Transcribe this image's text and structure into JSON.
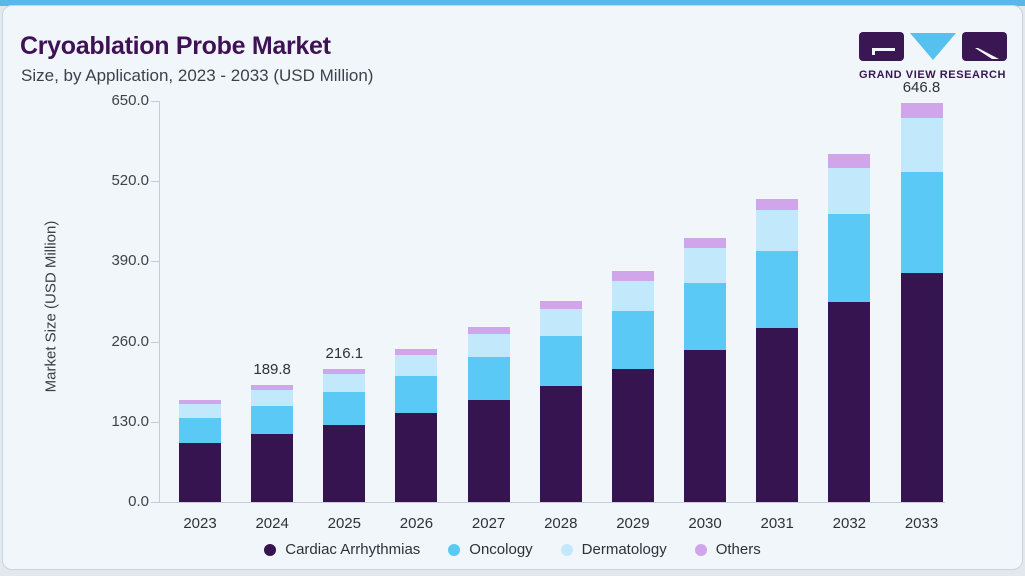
{
  "header": {
    "title": "Cryoablation Probe Market",
    "subtitle": "Size, by Application, 2023 - 2033 (USD Million)"
  },
  "logo": {
    "text": "GRAND VIEW RESEARCH",
    "purple": "#3a1652",
    "blue": "#56c0ee"
  },
  "colors": {
    "top_strip": "#58b9e9",
    "card_bg": "#f1f6fa",
    "axis": "#c5ced6",
    "title": "#3e1254"
  },
  "chart_data": {
    "type": "bar",
    "variant": "stacked",
    "title": "Cryoablation Probe Market",
    "subtitle": "Size, by Application, 2023 - 2033 (USD Million)",
    "xlabel": "",
    "ylabel": "Market Size (USD Million)",
    "ylim": [
      0,
      650
    ],
    "ytick_values": [
      650,
      520,
      390,
      260,
      130,
      0
    ],
    "ytick_labels": [
      "650.0",
      "520.0",
      "390.0",
      "260.0",
      "130.0",
      "0.0"
    ],
    "grid": false,
    "legend_position": "bottom",
    "categories": [
      "2023",
      "2024",
      "2025",
      "2026",
      "2027",
      "2028",
      "2029",
      "2030",
      "2031",
      "2032",
      "2033"
    ],
    "series": [
      {
        "name": "Cardiac Arrhythmias",
        "color": "#361450",
        "values": [
          96.3,
          110.3,
          125.6,
          143.8,
          164.6,
          188.4,
          215.6,
          246.9,
          282.7,
          323.7,
          370.8
        ]
      },
      {
        "name": "Oncology",
        "color": "#5bc9f5",
        "values": [
          39.8,
          45.9,
          52.4,
          60.6,
          70.0,
          80.9,
          93.4,
          107.8,
          124.2,
          143.1,
          164.9
        ]
      },
      {
        "name": "Dermatology",
        "color": "#c2e9fb",
        "values": [
          22.6,
          25.4,
          28.8,
          33.2,
          38.0,
          43.6,
          50.0,
          57.3,
          65.7,
          75.3,
          86.5
        ]
      },
      {
        "name": "Others",
        "color": "#d0a5e9",
        "values": [
          7.3,
          8.2,
          9.3,
          10.2,
          11.6,
          13.0,
          14.7,
          16.6,
          18.9,
          21.5,
          24.6
        ]
      }
    ],
    "totals": [
      166.0,
      189.8,
      216.1,
      247.8,
      284.2,
      325.9,
      373.7,
      428.6,
      491.5,
      563.6,
      646.8
    ],
    "bar_labels": {
      "2024": "189.8",
      "2025": "216.1",
      "2033": "646.8"
    }
  }
}
